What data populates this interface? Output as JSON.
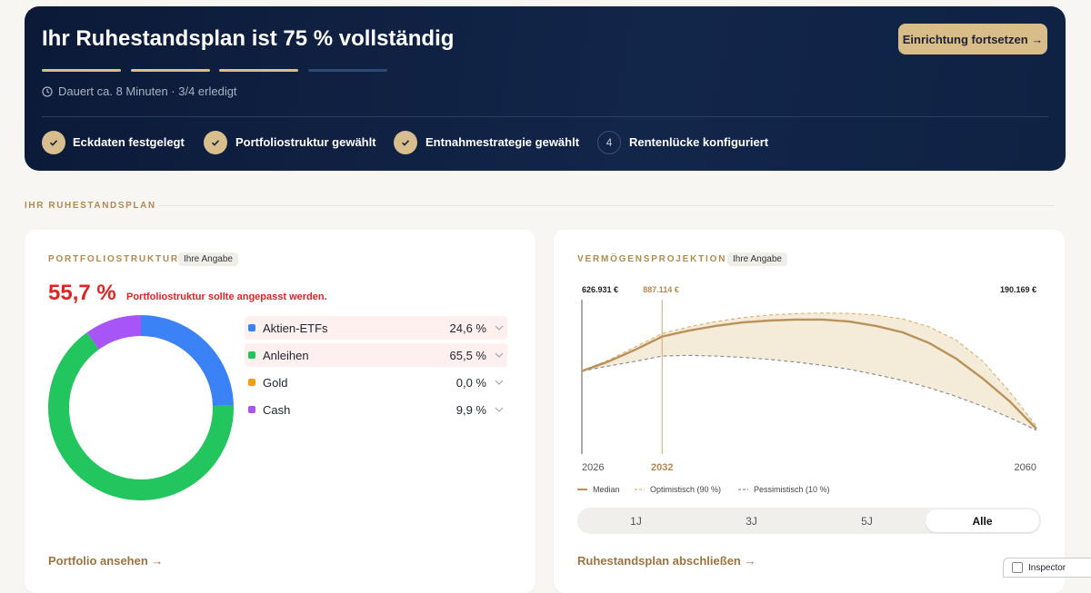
{
  "header": {
    "title": "Ihr Ruhestandsplan ist 75 % vollständig",
    "button": "Einrichtung fortsetzen →",
    "progress_segments": [
      true,
      true,
      true,
      false
    ],
    "meta": "Dauert ca. 8 Minuten · 3/4 erledigt",
    "steps": [
      {
        "label": "Eckdaten festgelegt",
        "done": true
      },
      {
        "label": "Portfoliostruktur gewählt",
        "done": true
      },
      {
        "label": "Entnahmestrategie gewählt",
        "done": true
      },
      {
        "label": "Rentenlücke konfiguriert",
        "done": false,
        "number": 4
      }
    ]
  },
  "section_label": "IHR RUHESTANDSPLAN",
  "portfolio": {
    "heading": "PORTFOLIOSTRUKTUR",
    "badge": "Ihre Angabe",
    "score": "55,7 %",
    "warning": "Portfoliostruktur sollte angepasst werden.",
    "allocations": [
      {
        "name": "Aktien-ETFs",
        "value": 24.6,
        "value_label": "24,6 %",
        "color": "#3b82f6",
        "highlight": true
      },
      {
        "name": "Anleihen",
        "value": 65.5,
        "value_label": "65,5 %",
        "color": "#22c55e",
        "highlight": true
      },
      {
        "name": "Gold",
        "value": 0.0,
        "value_label": "0,0 %",
        "color": "#f59e0b",
        "highlight": false
      },
      {
        "name": "Cash",
        "value": 9.9,
        "value_label": "9,9 %",
        "color": "#a855f7",
        "highlight": false
      }
    ],
    "link": "Portfolio ansehen →"
  },
  "projection": {
    "heading": "VERMÖGENSPROJEKTION",
    "badge": "Ihre Angabe",
    "chart_data": {
      "type": "line",
      "x": [
        2026,
        2028,
        2030,
        2032,
        2034,
        2036,
        2038,
        2040,
        2042,
        2044,
        2046,
        2048,
        2050,
        2052,
        2054,
        2056,
        2058,
        2060
      ],
      "series": [
        {
          "name": "Median",
          "color": "#b8925a",
          "dash": false,
          "values": [
            626931,
            699000,
            788000,
            887114,
            932000,
            967000,
            994000,
            1008000,
            1015000,
            1015000,
            1001000,
            967000,
            919000,
            837000,
            720000,
            569000,
            398000,
            190169
          ]
        },
        {
          "name": "Optimistisch (90 %)",
          "color": "#d9b77a",
          "dash": true,
          "values": [
            626931,
            710000,
            810000,
            910000,
            960000,
            1000000,
            1030000,
            1050000,
            1060000,
            1065000,
            1062000,
            1050000,
            1020000,
            960000,
            860000,
            700000,
            470000,
            210000
          ]
        },
        {
          "name": "Pessimistisch (10 %)",
          "color": "#8a8f99",
          "dash": true,
          "values": [
            626931,
            665000,
            700000,
            740000,
            745000,
            740000,
            730000,
            715000,
            695000,
            670000,
            640000,
            600000,
            555000,
            500000,
            435000,
            360000,
            275000,
            180000
          ]
        }
      ],
      "band_color": "#f3e6d0",
      "xlim": [
        2026,
        2060
      ],
      "xticks": [
        2026,
        2032,
        2060
      ],
      "highlight_x": 2032,
      "ylim": [
        0,
        1200000
      ],
      "annotations": [
        {
          "x": 2026,
          "value": 626931,
          "label": "626.931 €",
          "highlight": false
        },
        {
          "x": 2032,
          "value": 887114,
          "label": "887.114 €",
          "highlight": true
        },
        {
          "x": 2060,
          "value": 190169,
          "label": "190.169 €",
          "highlight": false
        }
      ]
    },
    "tabs": [
      "1J",
      "3J",
      "5J",
      "Alle"
    ],
    "active_tab": 3,
    "link": "Ruhestandsplan abschließen →"
  },
  "overlay_label": "Inspector"
}
